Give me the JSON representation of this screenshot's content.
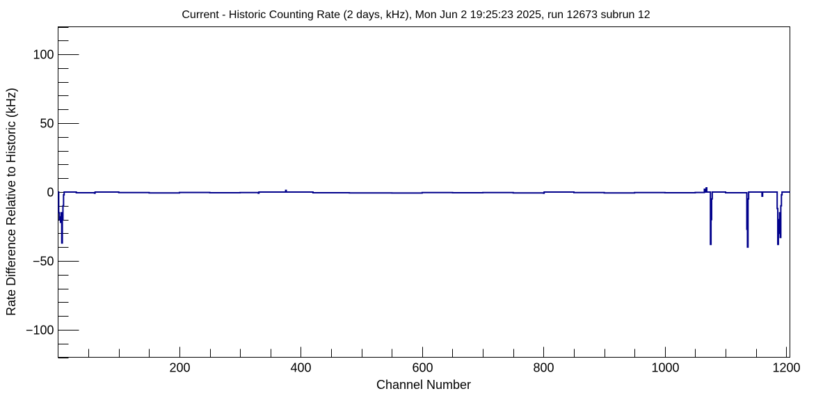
{
  "chart_data": {
    "type": "line",
    "title": "Current - Historic Counting Rate (2 days, kHz), Mon Jun  2 19:25:23 2025, run 12673 subrun 12",
    "xlabel": "Channel Number",
    "ylabel": "Rate Difference Relative to Historic (kHz)",
    "xlim": [
      0,
      1206
    ],
    "ylim": [
      -120,
      120
    ],
    "x_major_ticks": [
      200,
      400,
      600,
      800,
      1000,
      1200
    ],
    "x_minor_step": 50,
    "y_major_ticks": [
      -100,
      -50,
      0,
      50,
      100
    ],
    "y_minor_step": 10,
    "grid": false,
    "series_color": "#00008b",
    "series": [
      {
        "points": [
          [
            0,
            0
          ],
          [
            1,
            -15
          ],
          [
            2,
            -20
          ],
          [
            3,
            -18
          ],
          [
            4,
            -22
          ],
          [
            5,
            -15
          ],
          [
            6,
            -37
          ],
          [
            7,
            -20
          ],
          [
            8,
            -10
          ],
          [
            9,
            -2
          ],
          [
            10,
            0
          ],
          [
            30,
            -0.5
          ],
          [
            60,
            -0.8
          ],
          [
            61,
            0
          ],
          [
            100,
            -0.4
          ],
          [
            150,
            -0.6
          ],
          [
            200,
            -0.3
          ],
          [
            250,
            -0.5
          ],
          [
            300,
            -0.4
          ],
          [
            330,
            -0.8
          ],
          [
            331,
            0
          ],
          [
            375,
            1.2
          ],
          [
            376,
            0
          ],
          [
            420,
            -0.5
          ],
          [
            480,
            -0.6
          ],
          [
            550,
            -0.7
          ],
          [
            600,
            -0.4
          ],
          [
            650,
            -0.5
          ],
          [
            700,
            -0.4
          ],
          [
            750,
            -0.6
          ],
          [
            800,
            -0.8
          ],
          [
            801,
            0
          ],
          [
            850,
            -0.4
          ],
          [
            900,
            -0.6
          ],
          [
            950,
            -0.4
          ],
          [
            1000,
            -0.5
          ],
          [
            1050,
            -0.3
          ],
          [
            1065,
            2
          ],
          [
            1066,
            0
          ],
          [
            1068,
            3
          ],
          [
            1069,
            0
          ],
          [
            1075,
            -38
          ],
          [
            1076,
            -20
          ],
          [
            1077,
            -5
          ],
          [
            1078,
            0
          ],
          [
            1100,
            -0.5
          ],
          [
            1135,
            -27
          ],
          [
            1136,
            -40
          ],
          [
            1137,
            -5
          ],
          [
            1138,
            0
          ],
          [
            1160,
            -3
          ],
          [
            1161,
            0
          ],
          [
            1185,
            -12
          ],
          [
            1186,
            -38
          ],
          [
            1187,
            -20
          ],
          [
            1188,
            -30
          ],
          [
            1189,
            -15
          ],
          [
            1190,
            -33
          ],
          [
            1191,
            -10
          ],
          [
            1192,
            -2
          ],
          [
            1193,
            0
          ],
          [
            1206,
            0
          ]
        ]
      }
    ]
  }
}
